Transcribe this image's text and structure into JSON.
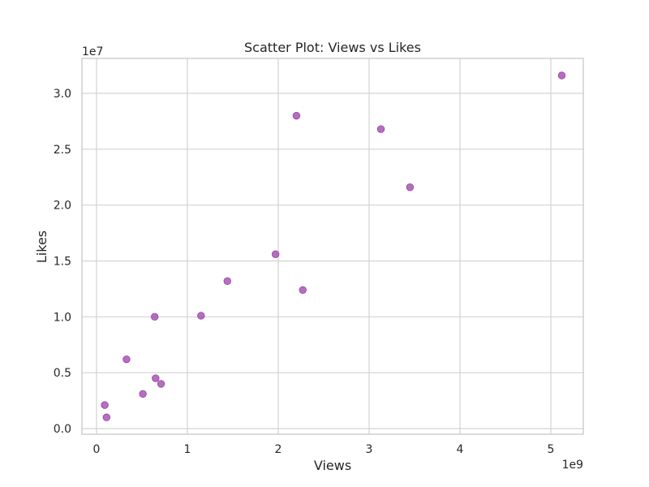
{
  "chart_data": {
    "type": "scatter",
    "title": "Scatter Plot: Views vs Likes",
    "xlabel": "Views",
    "ylabel": "Likes",
    "x_offset_label": "1e9",
    "y_offset_label": "1e7",
    "x_ticks": [
      0,
      1000000000,
      2000000000,
      3000000000,
      4000000000,
      5000000000
    ],
    "x_tick_labels": [
      "0",
      "1",
      "2",
      "3",
      "4",
      "5"
    ],
    "y_ticks": [
      0,
      5000000,
      10000000,
      15000000,
      20000000,
      25000000,
      30000000
    ],
    "y_tick_labels": [
      "0.0",
      "0.5",
      "1.0",
      "1.5",
      "2.0",
      "2.5",
      "3.0"
    ],
    "xlim": [
      -150000000,
      5370000000
    ],
    "ylim": [
      -500000000,
      33100000
    ],
    "grid": true,
    "point_color": "#9b3fa8",
    "point_opacity": 0.75,
    "points": [
      {
        "x": 90000000,
        "y": 2100000
      },
      {
        "x": 110000000,
        "y": 1000000
      },
      {
        "x": 330000000,
        "y": 6200000
      },
      {
        "x": 510000000,
        "y": 3100000
      },
      {
        "x": 650000000,
        "y": 4500000
      },
      {
        "x": 640000000,
        "y": 10000000
      },
      {
        "x": 710000000,
        "y": 4000000
      },
      {
        "x": 1150000000,
        "y": 10100000
      },
      {
        "x": 1440000000,
        "y": 13200000
      },
      {
        "x": 1970000000,
        "y": 15600000
      },
      {
        "x": 2200000000,
        "y": 28000000
      },
      {
        "x": 2270000000,
        "y": 12400000
      },
      {
        "x": 3130000000,
        "y": 26800000
      },
      {
        "x": 3450000000,
        "y": 21600000
      },
      {
        "x": 5120000000,
        "y": 31600000
      }
    ]
  }
}
